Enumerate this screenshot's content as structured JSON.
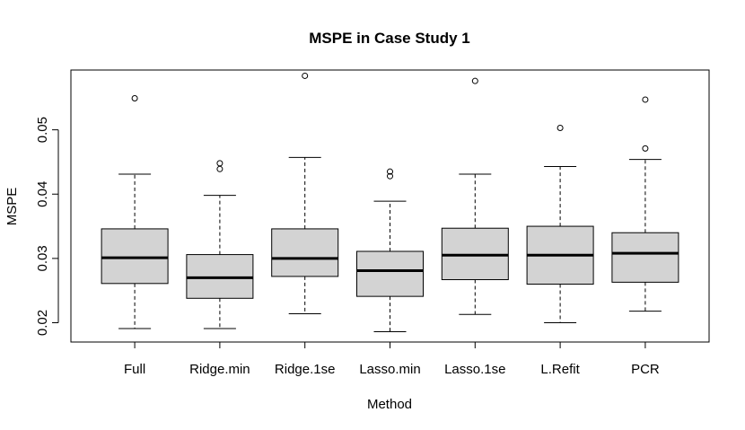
{
  "chart_data": {
    "type": "boxplot",
    "title": "MSPE in Case Study 1",
    "xlabel": "Method",
    "ylabel": "MSPE",
    "ylim": [
      0.017,
      0.0593
    ],
    "yticks": [
      0.02,
      0.03,
      0.04,
      0.05
    ],
    "ytick_labels": [
      "0.02",
      "0.03",
      "0.04",
      "0.05"
    ],
    "box_color": "#d3d3d3",
    "categories": [
      "Full",
      "Ridge.min",
      "Ridge.1se",
      "Lasso.min",
      "Lasso.1se",
      "L.Refit",
      "PCR"
    ],
    "boxes": [
      {
        "min": 0.0191,
        "q1": 0.0261,
        "median": 0.0301,
        "q3": 0.0346,
        "max": 0.0431,
        "outliers": [
          0.0549
        ]
      },
      {
        "min": 0.0191,
        "q1": 0.0238,
        "median": 0.027,
        "q3": 0.0306,
        "max": 0.0398,
        "outliers": [
          0.0439,
          0.0448
        ]
      },
      {
        "min": 0.0214,
        "q1": 0.0272,
        "median": 0.03,
        "q3": 0.0346,
        "max": 0.0457,
        "outliers": [
          0.0584
        ]
      },
      {
        "min": 0.0186,
        "q1": 0.0241,
        "median": 0.0281,
        "q3": 0.0311,
        "max": 0.0389,
        "outliers": [
          0.0428,
          0.0435
        ]
      },
      {
        "min": 0.0213,
        "q1": 0.0267,
        "median": 0.0305,
        "q3": 0.0347,
        "max": 0.0431,
        "outliers": [
          0.0576
        ]
      },
      {
        "min": 0.02,
        "q1": 0.026,
        "median": 0.0305,
        "q3": 0.035,
        "max": 0.0443,
        "outliers": [
          0.0503
        ]
      },
      {
        "min": 0.0218,
        "q1": 0.0263,
        "median": 0.0308,
        "q3": 0.034,
        "max": 0.0454,
        "outliers": [
          0.0471,
          0.0547
        ]
      }
    ]
  }
}
